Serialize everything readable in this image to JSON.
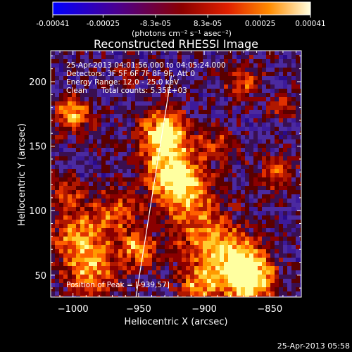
{
  "colorbar": {
    "tick_labels": [
      "-0.00041",
      "-0.00025",
      "-8.3e-05",
      "8.3e-05",
      "0.00025",
      "0.00041"
    ],
    "tick_values": [
      -0.00041,
      -0.00025,
      -8.3e-05,
      8.3e-05,
      0.00025,
      0.00041
    ],
    "range": [
      -0.00041,
      0.00041
    ],
    "units": "(photons cm⁻² s⁻¹ asec⁻²)",
    "stops": [
      "#0000ff",
      "#4b0090",
      "#8b0000",
      "#e02000",
      "#ff8c00",
      "#ffffe0"
    ]
  },
  "chart_data": {
    "type": "heatmap",
    "title": "Reconstructed RHESSI Image",
    "xlabel": "Heliocentric X (arcsec)",
    "ylabel": "Heliocentric Y (arcsec)",
    "xlim": [
      -1017,
      -826
    ],
    "ylim": [
      33,
      224
    ],
    "x_ticks": [
      -1000,
      -950,
      -900,
      -850
    ],
    "y_ticks": [
      50,
      100,
      150,
      200
    ],
    "x_tick_labels": [
      "−1000",
      "−950",
      "−900",
      "−850"
    ],
    "y_tick_labels": [
      "50",
      "100",
      "150",
      "200"
    ],
    "annotations": [
      "25-Apr-2013 04:01:56.000 to 04:05:24.000",
      "Detectors: 3F 5F 6F 7F 8F 9F, Att 0",
      "Energy Range: 12.0 - 25.0 keV",
      "Clean      Total counts: 5.35E+03"
    ],
    "peak_label": "Position of Peak = [-939,57]",
    "limb_line": [
      [
        -952,
        33
      ],
      [
        -925,
        205
      ]
    ],
    "grid": false,
    "timestamp": "25-Apr-2013 05:58"
  }
}
